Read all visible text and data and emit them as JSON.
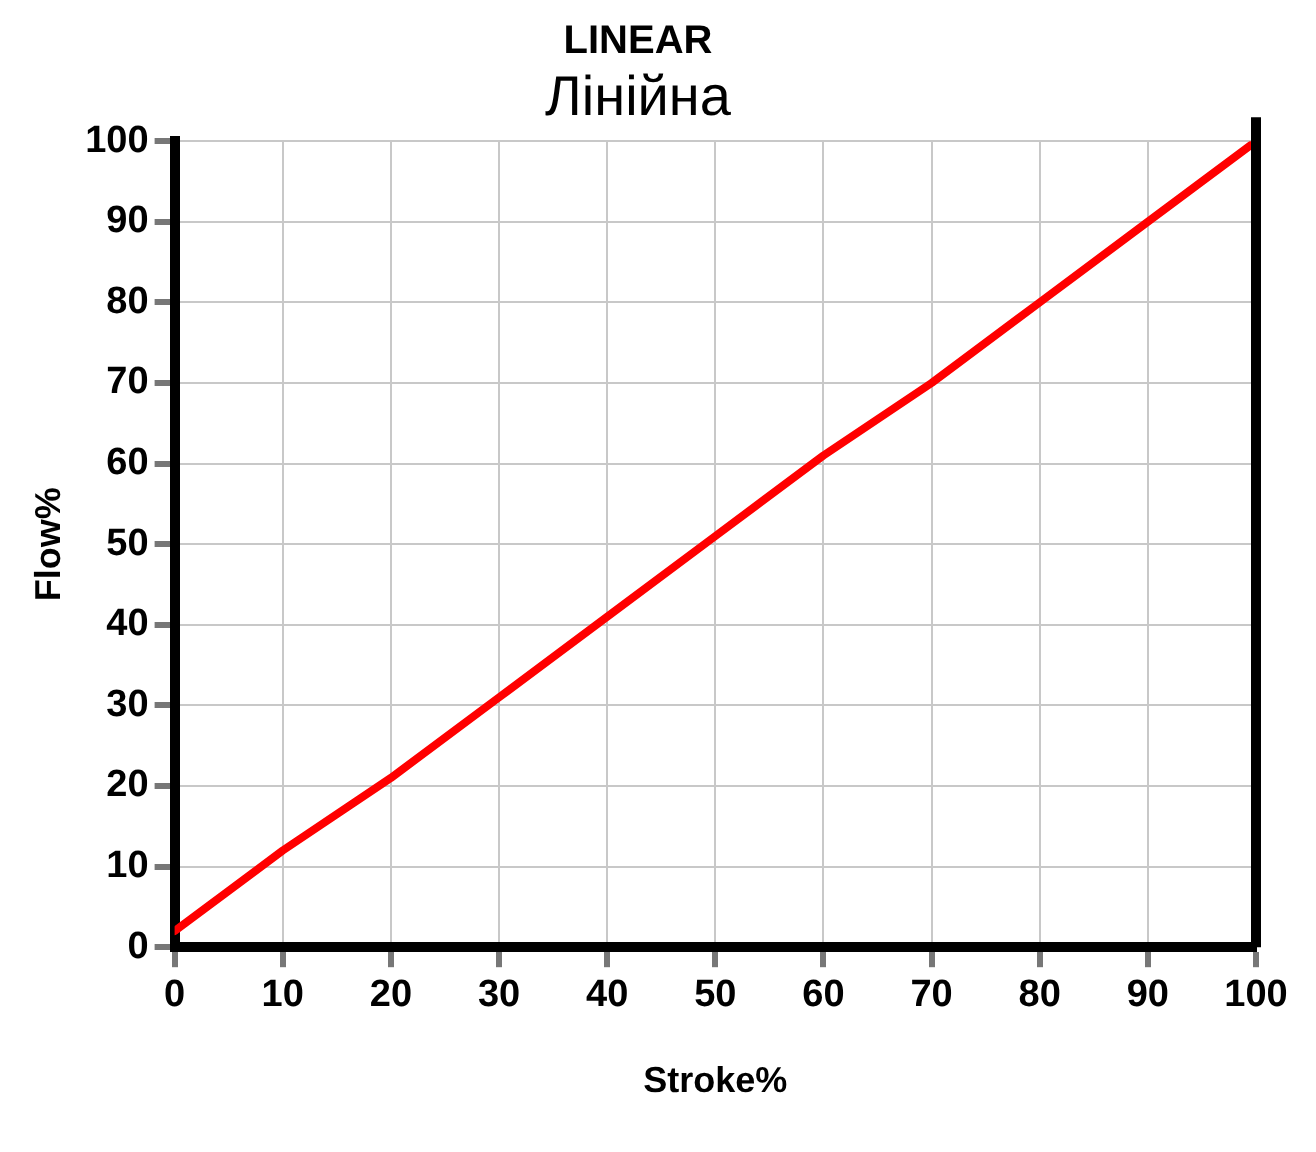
{
  "chart_data": {
    "type": "line",
    "title": "LINEAR",
    "subtitle": "Лінійна",
    "xlabel": "Stroke%",
    "ylabel": "Flow%",
    "x": [
      0,
      10,
      20,
      30,
      40,
      50,
      60,
      70,
      80,
      90,
      100
    ],
    "series": [
      {
        "color": "#ff0000",
        "values": [
          2,
          12,
          21,
          31,
          41,
          51,
          61,
          70,
          80,
          90,
          100
        ]
      }
    ],
    "xlim": [
      0,
      100
    ],
    "xticks": [
      0,
      10,
      20,
      30,
      40,
      50,
      60,
      70,
      80,
      90,
      100
    ],
    "ylim": [
      0,
      100
    ],
    "yticks": [
      0,
      10,
      20,
      30,
      40,
      50,
      60,
      70,
      80,
      90,
      100
    ],
    "grid": true,
    "legend": false,
    "marker": "none",
    "line_style": "solid"
  }
}
